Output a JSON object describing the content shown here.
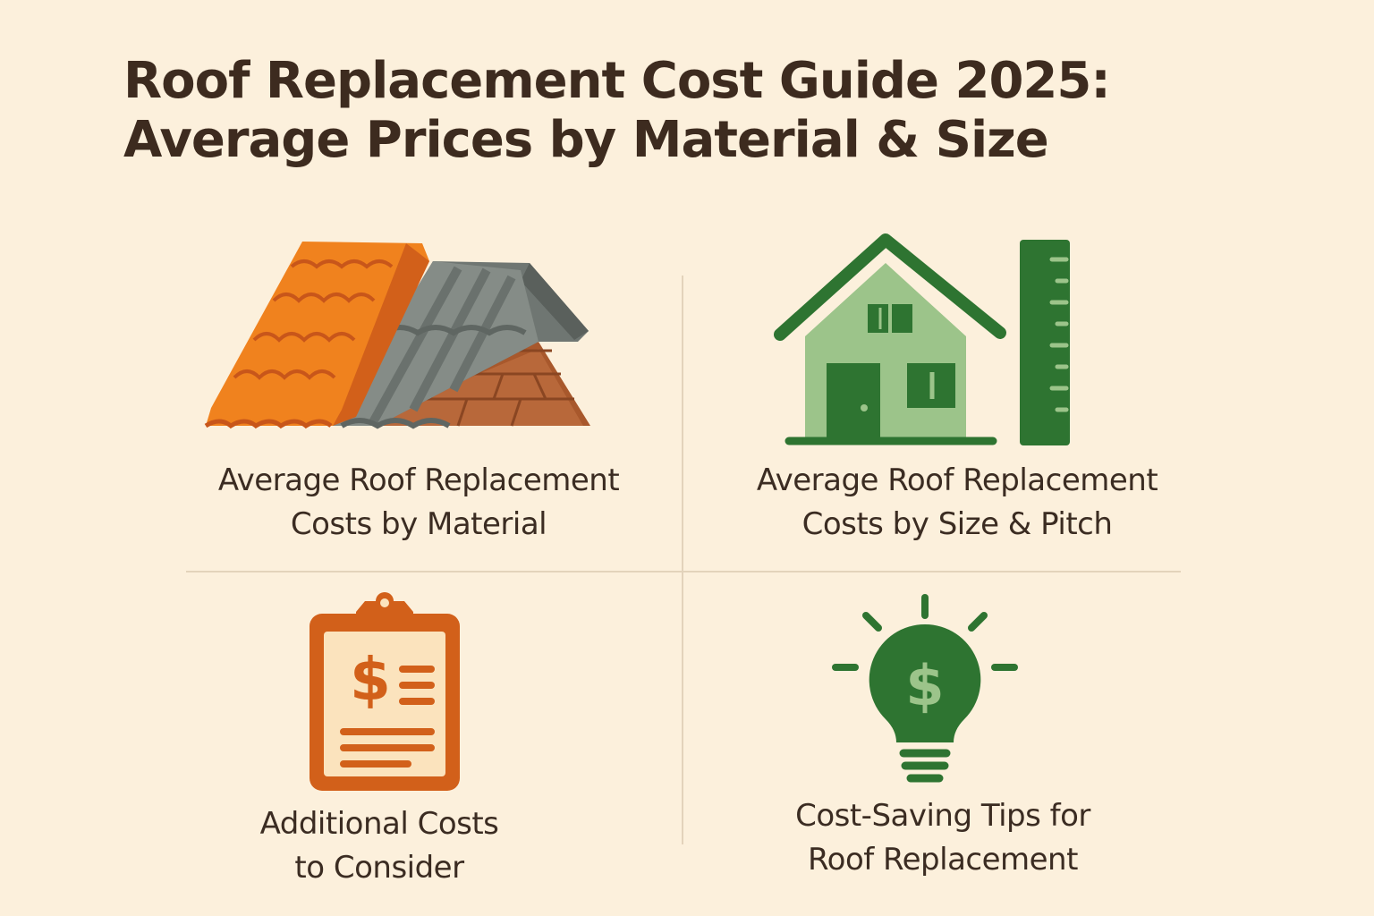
{
  "title": {
    "line1": "Roof Replacement Cost Guide 2025:",
    "line2": "Average Prices by Material & Size"
  },
  "sections": [
    {
      "icon": "roof-materials-icon",
      "line1": "Average Roof Replacement",
      "line2": "Costs by Material"
    },
    {
      "icon": "house-ruler-icon",
      "line1": "Average Roof Replacement",
      "line2": "Costs by Size & Pitch"
    },
    {
      "icon": "clipboard-dollar-icon",
      "line1": "Additional Costs",
      "line2": "to Consider"
    },
    {
      "icon": "lightbulb-dollar-icon",
      "line1": "Cost-Saving Tips for",
      "line2": "Roof Replacement"
    }
  ],
  "colors": {
    "background": "#fcf0dc",
    "text": "#3b2c22",
    "orange": "#f0821e",
    "gray": "#7d8580",
    "brown": "#a05a30",
    "green": "#2e7431",
    "light_green": "#9cc48a"
  }
}
